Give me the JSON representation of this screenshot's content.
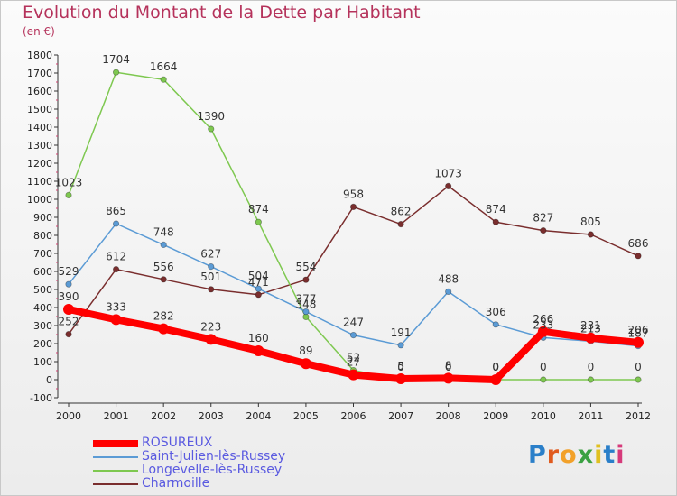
{
  "header": {
    "title": "Evolution du Montant de la Dette par Habitant",
    "unit": "(en €)"
  },
  "logo": {
    "text": "Proxiti",
    "colors": [
      "#2a7fc9",
      "#e05a1e",
      "#f2a12a",
      "#3aa142",
      "#e0c020",
      "#2a7fc9",
      "#d63a7a"
    ]
  },
  "chart_data": {
    "type": "line",
    "title": "Evolution du Montant de la Dette par Habitant",
    "ylabel": "(en €)",
    "xlabel": "",
    "x": [
      2000,
      2001,
      2002,
      2003,
      2004,
      2005,
      2006,
      2007,
      2008,
      2009,
      2010,
      2011,
      2012
    ],
    "ylim": [
      -100,
      1800
    ],
    "yticks": [
      -100,
      0,
      100,
      200,
      300,
      400,
      500,
      600,
      700,
      800,
      900,
      1000,
      1100,
      1200,
      1300,
      1400,
      1500,
      1600,
      1700,
      1800
    ],
    "grid": false,
    "legend_position": "bottom-left",
    "series": [
      {
        "name": "ROSUREUX",
        "color": "#ff0000",
        "values": [
          390,
          333,
          282,
          223,
          160,
          89,
          27,
          5,
          8,
          0,
          266,
          231,
          206
        ]
      },
      {
        "name": "Saint-Julien-lès-Russey",
        "color": "#5b9bd5",
        "values": [
          529,
          865,
          748,
          627,
          504,
          377,
          247,
          191,
          488,
          306,
          233,
          213,
          187
        ]
      },
      {
        "name": "Longevelle-lès-Russey",
        "color": "#7ec850",
        "values": [
          1023,
          1704,
          1664,
          1390,
          874,
          348,
          52,
          0,
          0,
          0,
          0,
          0,
          0
        ]
      },
      {
        "name": "Charmoille",
        "color": "#7a2e2e",
        "values": [
          252,
          612,
          556,
          501,
          471,
          554,
          958,
          862,
          1073,
          874,
          827,
          805,
          686
        ]
      }
    ]
  }
}
